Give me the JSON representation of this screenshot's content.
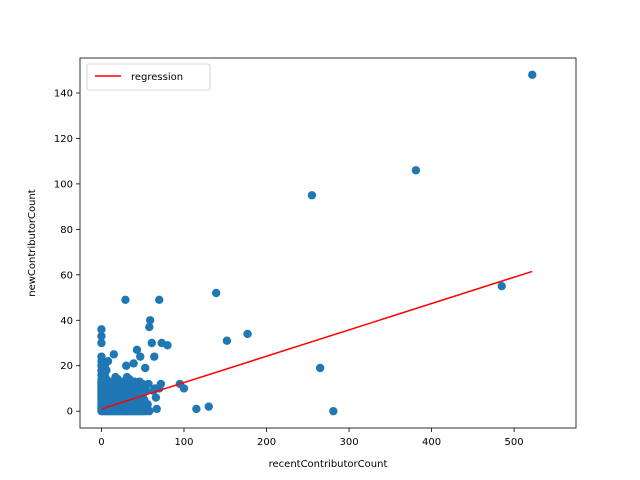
{
  "chart_data": {
    "type": "scatter",
    "title": "",
    "xlabel": "recentContributorCount",
    "ylabel": "newContributorCount",
    "xlim": [
      -26,
      575
    ],
    "ylim": [
      -7.4,
      155.4
    ],
    "xticks": [
      0,
      100,
      200,
      300,
      400,
      500
    ],
    "yticks": [
      0,
      20,
      40,
      60,
      80,
      100,
      120,
      140
    ],
    "grid": false,
    "legend": {
      "position": "top-left",
      "entries": [
        {
          "label": "regression",
          "color": "#ff0000",
          "kind": "line"
        }
      ]
    },
    "series": [
      {
        "kind": "points",
        "color": "#1f77b4",
        "points": [
          [
            0,
            0
          ],
          [
            0,
            1
          ],
          [
            0,
            2
          ],
          [
            0,
            3
          ],
          [
            0,
            4
          ],
          [
            0,
            5
          ],
          [
            0,
            6
          ],
          [
            0,
            7
          ],
          [
            0,
            8
          ],
          [
            0,
            9
          ],
          [
            0,
            10
          ],
          [
            0,
            11
          ],
          [
            0,
            12
          ],
          [
            0,
            13
          ],
          [
            0,
            14
          ],
          [
            0,
            16
          ],
          [
            0,
            18
          ],
          [
            0,
            20
          ],
          [
            0,
            22
          ],
          [
            0,
            24
          ],
          [
            0,
            30
          ],
          [
            0,
            33
          ],
          [
            0,
            36
          ],
          [
            2,
            0
          ],
          [
            2,
            2
          ],
          [
            2,
            4
          ],
          [
            2,
            6
          ],
          [
            2,
            9
          ],
          [
            2,
            12
          ],
          [
            2,
            15
          ],
          [
            4,
            0
          ],
          [
            4,
            1
          ],
          [
            4,
            3
          ],
          [
            4,
            5
          ],
          [
            4,
            8
          ],
          [
            4,
            11
          ],
          [
            4,
            13
          ],
          [
            4,
            16
          ],
          [
            4,
            20
          ],
          [
            6,
            0
          ],
          [
            6,
            2
          ],
          [
            6,
            4
          ],
          [
            6,
            7
          ],
          [
            6,
            10
          ],
          [
            6,
            12
          ],
          [
            6,
            14
          ],
          [
            6,
            18
          ],
          [
            8,
            0
          ],
          [
            8,
            1
          ],
          [
            8,
            3
          ],
          [
            8,
            6
          ],
          [
            8,
            9
          ],
          [
            8,
            12
          ],
          [
            8,
            22
          ],
          [
            10,
            0
          ],
          [
            10,
            2
          ],
          [
            10,
            5
          ],
          [
            10,
            8
          ],
          [
            10,
            11
          ],
          [
            10,
            13
          ],
          [
            12,
            0
          ],
          [
            12,
            1
          ],
          [
            12,
            4
          ],
          [
            12,
            7
          ],
          [
            12,
            10
          ],
          [
            12,
            12
          ],
          [
            14,
            0
          ],
          [
            14,
            3
          ],
          [
            14,
            6
          ],
          [
            14,
            9
          ],
          [
            14,
            12
          ],
          [
            15,
            25
          ],
          [
            16,
            0
          ],
          [
            16,
            2
          ],
          [
            16,
            5
          ],
          [
            16,
            8
          ],
          [
            16,
            11
          ],
          [
            17,
            15
          ],
          [
            18,
            0
          ],
          [
            18,
            3
          ],
          [
            18,
            6
          ],
          [
            18,
            10
          ],
          [
            18,
            12
          ],
          [
            20,
            0
          ],
          [
            20,
            1
          ],
          [
            20,
            4
          ],
          [
            20,
            7
          ],
          [
            20,
            9
          ],
          [
            20,
            11
          ],
          [
            20,
            14
          ],
          [
            22,
            0
          ],
          [
            22,
            2
          ],
          [
            22,
            5
          ],
          [
            22,
            8
          ],
          [
            22,
            12
          ],
          [
            24,
            0
          ],
          [
            24,
            3
          ],
          [
            24,
            6
          ],
          [
            24,
            10
          ],
          [
            24,
            13
          ],
          [
            26,
            0
          ],
          [
            26,
            1
          ],
          [
            26,
            4
          ],
          [
            26,
            8
          ],
          [
            26,
            11
          ],
          [
            28,
            0
          ],
          [
            28,
            2
          ],
          [
            28,
            6
          ],
          [
            28,
            9
          ],
          [
            28,
            12
          ],
          [
            29,
            49
          ],
          [
            30,
            20
          ],
          [
            30,
            0
          ],
          [
            30,
            3
          ],
          [
            30,
            5
          ],
          [
            30,
            8
          ],
          [
            30,
            13
          ],
          [
            31,
            15
          ],
          [
            32,
            0
          ],
          [
            32,
            2
          ],
          [
            32,
            4
          ],
          [
            32,
            7
          ],
          [
            32,
            10
          ],
          [
            34,
            0
          ],
          [
            34,
            1
          ],
          [
            34,
            5
          ],
          [
            34,
            8
          ],
          [
            34,
            11
          ],
          [
            34,
            14
          ],
          [
            36,
            0
          ],
          [
            36,
            3
          ],
          [
            36,
            6
          ],
          [
            36,
            9
          ],
          [
            36,
            12
          ],
          [
            38,
            0
          ],
          [
            38,
            2
          ],
          [
            38,
            5
          ],
          [
            38,
            8
          ],
          [
            38,
            11
          ],
          [
            39,
            21
          ],
          [
            40,
            0
          ],
          [
            40,
            1
          ],
          [
            40,
            4
          ],
          [
            40,
            7
          ],
          [
            40,
            10
          ],
          [
            40,
            13
          ],
          [
            42,
            0
          ],
          [
            42,
            3
          ],
          [
            42,
            6
          ],
          [
            42,
            9
          ],
          [
            42,
            12
          ],
          [
            43,
            27
          ],
          [
            44,
            0
          ],
          [
            44,
            2
          ],
          [
            44,
            5
          ],
          [
            44,
            8
          ],
          [
            44,
            11
          ],
          [
            46,
            0
          ],
          [
            46,
            1
          ],
          [
            46,
            4
          ],
          [
            46,
            8
          ],
          [
            46,
            13
          ],
          [
            47,
            24
          ],
          [
            48,
            0
          ],
          [
            48,
            3
          ],
          [
            48,
            6
          ],
          [
            48,
            10
          ],
          [
            50,
            0
          ],
          [
            50,
            1
          ],
          [
            50,
            4
          ],
          [
            50,
            7
          ],
          [
            50,
            12
          ],
          [
            52,
            0
          ],
          [
            52,
            2
          ],
          [
            52,
            5
          ],
          [
            53,
            19
          ],
          [
            54,
            9
          ],
          [
            55,
            0
          ],
          [
            56,
            1
          ],
          [
            56,
            3
          ],
          [
            57,
            12
          ],
          [
            58,
            0
          ],
          [
            58,
            37
          ],
          [
            59,
            40
          ],
          [
            61,
            30
          ],
          [
            63,
            9
          ],
          [
            64,
            24
          ],
          [
            65,
            10
          ],
          [
            66,
            6
          ],
          [
            67,
            1
          ],
          [
            70,
            49
          ],
          [
            70,
            10
          ],
          [
            72,
            12
          ],
          [
            73,
            30
          ],
          [
            80,
            29
          ],
          [
            95,
            12
          ],
          [
            100,
            10
          ],
          [
            115,
            1
          ],
          [
            130,
            2
          ],
          [
            139,
            52
          ],
          [
            152,
            31
          ],
          [
            177,
            34
          ],
          [
            255,
            95
          ],
          [
            265,
            19
          ],
          [
            281,
            0
          ],
          [
            381,
            106
          ],
          [
            485,
            55
          ],
          [
            522,
            148
          ]
        ]
      },
      {
        "name": "regression",
        "kind": "line",
        "color": "#ff0000",
        "x": [
          0,
          522
        ],
        "y": [
          1,
          61.5
        ]
      }
    ]
  }
}
